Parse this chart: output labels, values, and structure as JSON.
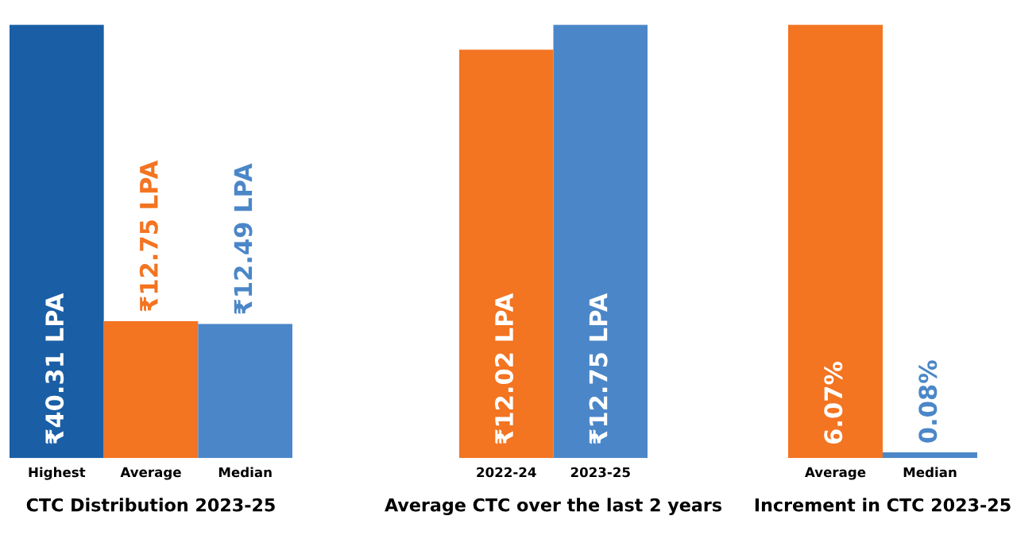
{
  "chart_data": [
    {
      "type": "bar",
      "title": "CTC Distribution 2023-25",
      "categories": [
        "Highest",
        "Average",
        "Median"
      ],
      "values": [
        40.31,
        12.75,
        12.49
      ],
      "colors": [
        "#1a5fa6",
        "#f37421",
        "#4b87c8"
      ],
      "value_labels": [
        "₹40.31 LPA",
        "₹12.75 LPA",
        "₹12.49 LPA"
      ],
      "grid": false,
      "legend": false
    },
    {
      "type": "bar",
      "title": "Average CTC over the last 2 years",
      "categories": [
        "2022-24",
        "2023-25"
      ],
      "values": [
        12.02,
        12.75
      ],
      "colors": [
        "#f37421",
        "#4b87c8"
      ],
      "value_labels": [
        "₹12.02 LPA",
        "₹12.75 LPA"
      ],
      "grid": false,
      "legend": false
    },
    {
      "type": "bar",
      "title": "Increment in CTC 2023-25",
      "categories": [
        "Average",
        "Median"
      ],
      "values": [
        6.07,
        0.08
      ],
      "colors": [
        "#f37421",
        "#4b87c8"
      ],
      "value_labels": [
        "6.07%",
        "0.08%"
      ],
      "grid": false,
      "legend": false
    }
  ]
}
